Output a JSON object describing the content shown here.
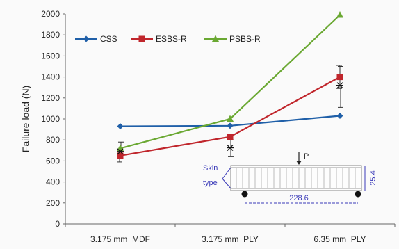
{
  "chart_data": {
    "type": "line",
    "title": "",
    "xlabel": "",
    "ylabel": "Failure load (N)",
    "categories": [
      "3.175 mm  MDF",
      "3.175 mm  PLY",
      "6.35 mm  PLY"
    ],
    "ylim": [
      0,
      2000
    ],
    "yticks": [
      0,
      200,
      400,
      600,
      800,
      1000,
      1200,
      1400,
      1600,
      1800,
      2000
    ],
    "grid": false,
    "legend_placement": "top-left",
    "series": [
      {
        "name": "CSS",
        "color": "#1f5fa8",
        "marker": "diamond",
        "values": [
          930,
          935,
          1030
        ]
      },
      {
        "name": "ESBS-R",
        "color": "#c0262c",
        "marker": "square",
        "values": [
          650,
          830,
          1400
        ]
      },
      {
        "name": "PSBS-R",
        "color": "#6aa832",
        "marker": "triangle",
        "values": [
          720,
          1000,
          1990
        ]
      }
    ],
    "error_bars": [
      {
        "series": "ESBS-R",
        "category_index": 0,
        "low": 590,
        "high": 700
      },
      {
        "series": "PSBS-R",
        "category_index": 0,
        "low": 660,
        "high": 780
      },
      {
        "series": "ESBS-R",
        "category_index": 2,
        "low": 1290,
        "high": 1510
      },
      {
        "series": "PSBS-R",
        "category_index": 2,
        "low": 1110,
        "high": 1500
      },
      {
        "series": "PSBS-R",
        "category_index": 1,
        "low": 640,
        "high": 800
      }
    ],
    "extra_points": [
      {
        "marker": "asterisk",
        "category_index": 0,
        "value": 690
      },
      {
        "marker": "asterisk",
        "category_index": 1,
        "value": 725
      },
      {
        "marker": "asterisk",
        "category_index": 2,
        "value": 1320
      }
    ],
    "inset": {
      "load_label": "P",
      "skin_label_line1": "Skin",
      "skin_label_line2": "type",
      "span_label": "228.6",
      "depth_label": "25.4"
    }
  }
}
